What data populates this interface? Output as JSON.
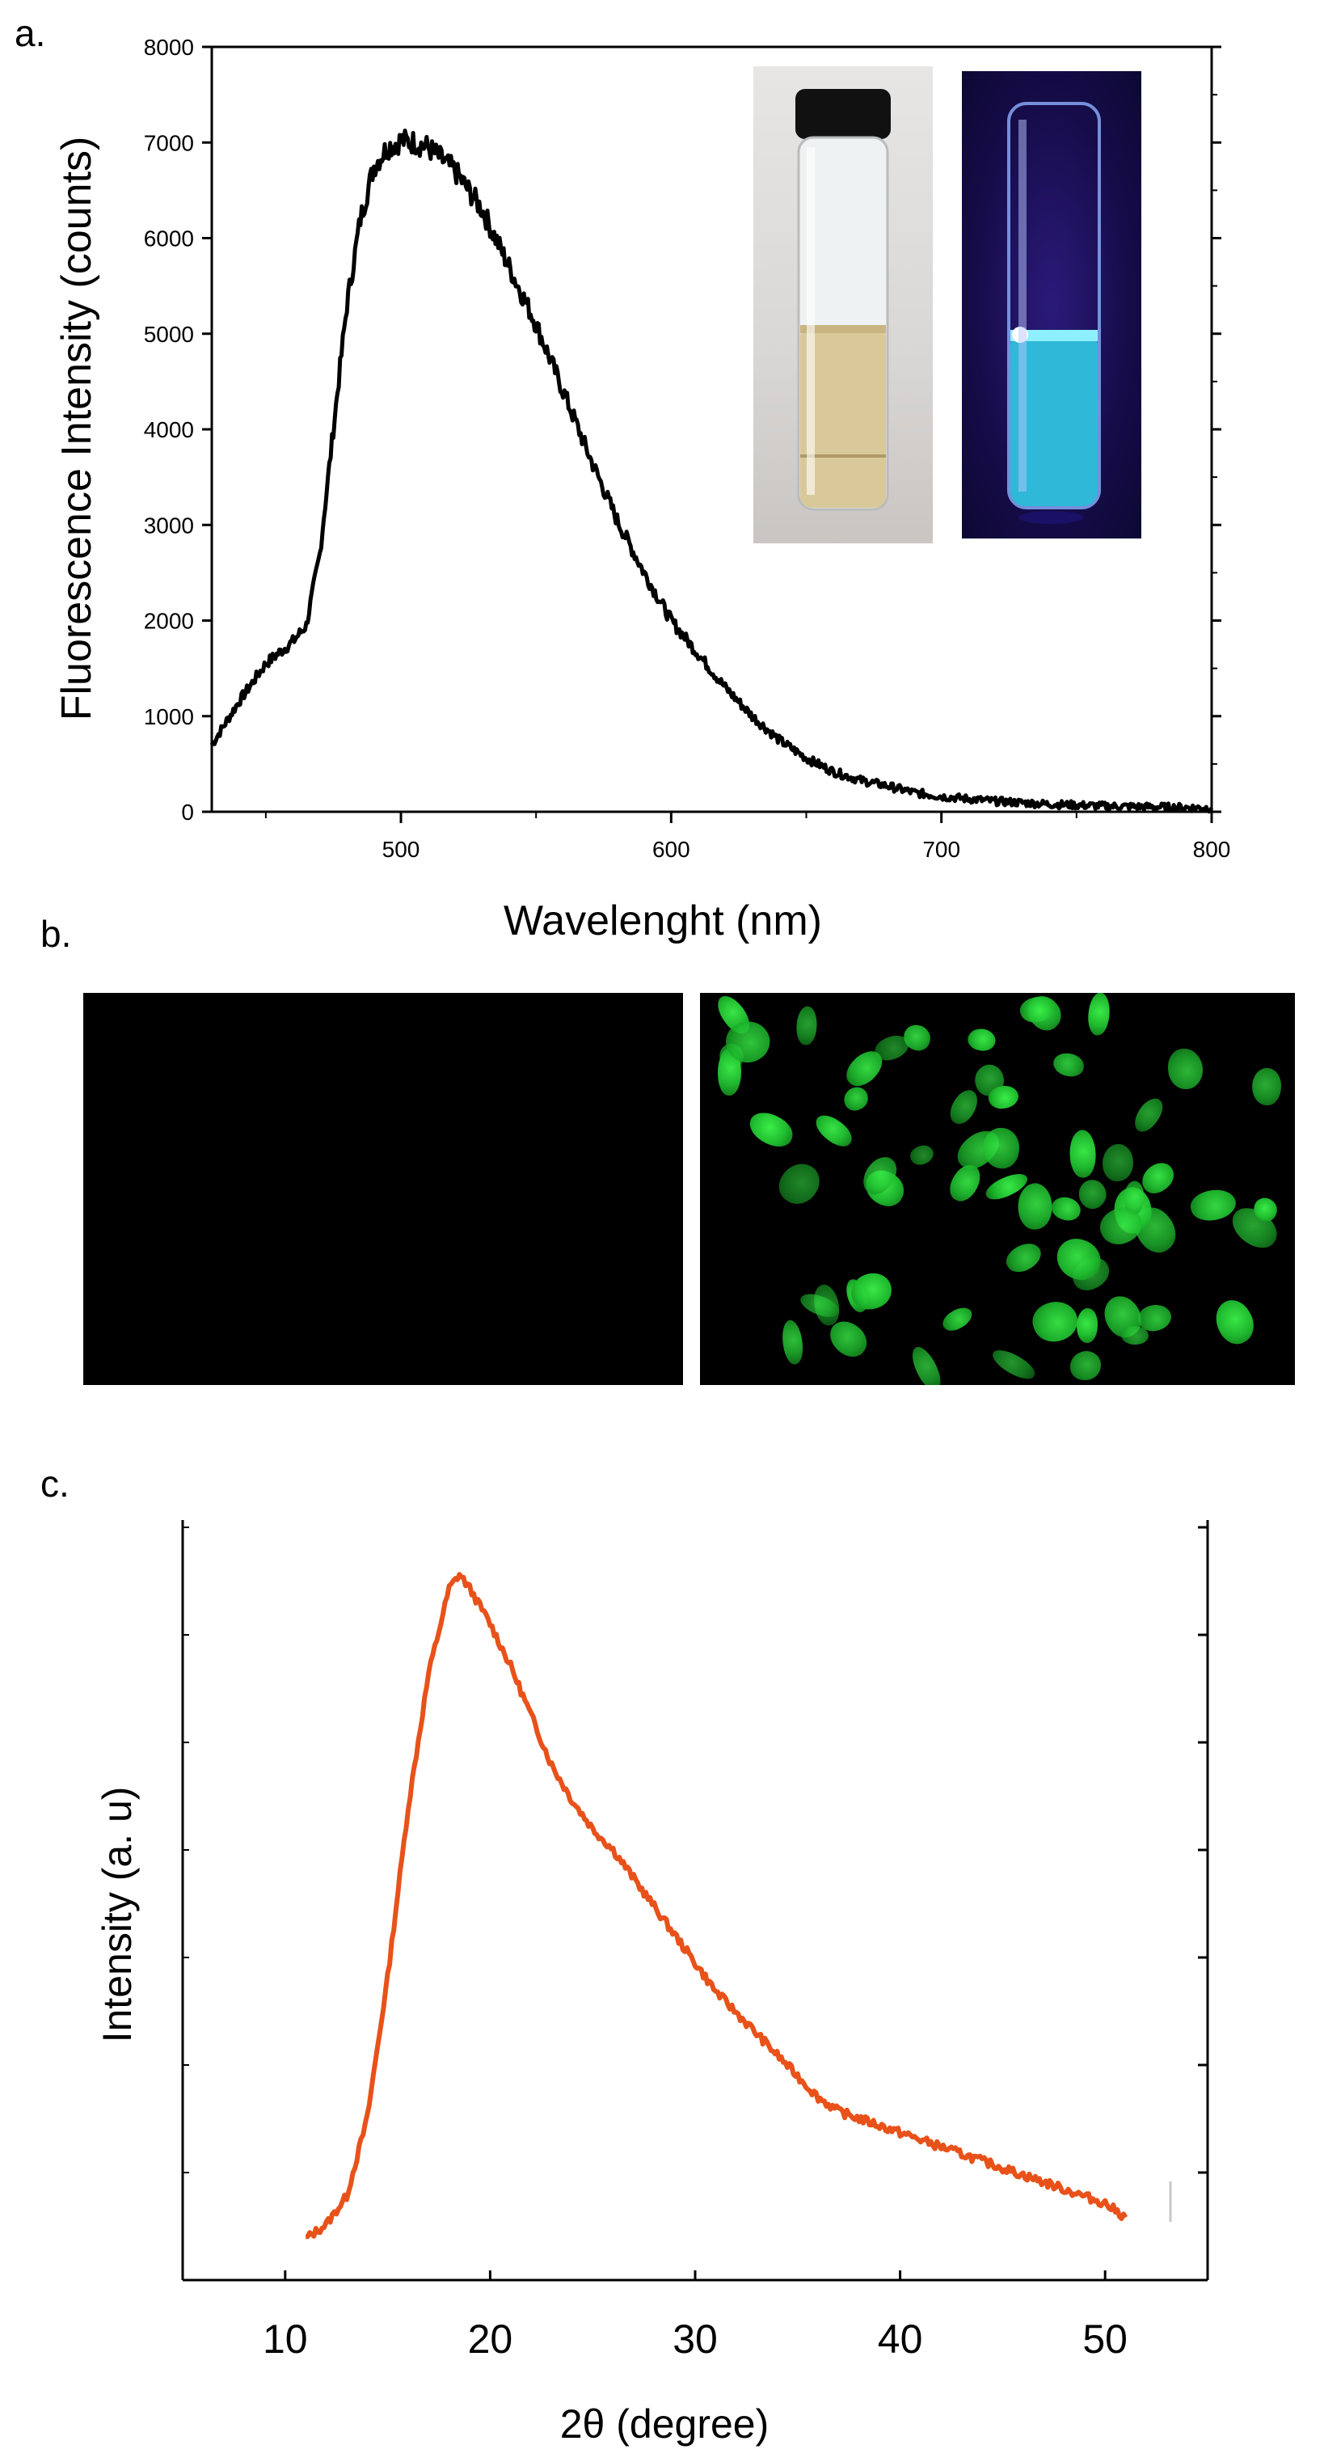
{
  "panels": {
    "a_label": "a.",
    "b_label": "b.",
    "c_label": "c."
  },
  "chart_data": [
    {
      "type": "line",
      "panel": "a",
      "xlabel": "Wavelenght (nm)",
      "ylabel": "Fluorescence Intensity (counts)",
      "xlim": [
        430,
        800
      ],
      "ylim": [
        0,
        8000
      ],
      "x_ticks": [
        500,
        600,
        700,
        800
      ],
      "y_ticks": [
        0,
        1000,
        2000,
        3000,
        4000,
        5000,
        6000,
        7000,
        8000
      ],
      "series": [
        {
          "color": "#000000",
          "x": [
            430,
            440,
            450,
            460,
            465,
            470,
            475,
            480,
            485,
            490,
            495,
            500,
            505,
            510,
            520,
            530,
            540,
            550,
            560,
            570,
            580,
            590,
            600,
            610,
            620,
            630,
            640,
            650,
            660,
            670,
            680,
            690,
            700,
            720,
            740,
            760,
            780,
            800
          ],
          "y": [
            700,
            1150,
            1550,
            1780,
            1950,
            2700,
            4000,
            5300,
            6200,
            6750,
            6950,
            7020,
            7000,
            6950,
            6700,
            6300,
            5700,
            5100,
            4400,
            3700,
            3050,
            2500,
            2000,
            1650,
            1300,
            1000,
            750,
            560,
            420,
            330,
            270,
            200,
            160,
            110,
            80,
            60,
            50,
            40
          ]
        }
      ]
    },
    {
      "type": "line",
      "panel": "c",
      "xlabel": "2θ (degree)",
      "ylabel": "Intensity (a. u)",
      "xlim": [
        5,
        55
      ],
      "x_ticks": [
        10,
        20,
        30,
        40,
        50
      ],
      "y_tick_labels": "none",
      "series": [
        {
          "color": "#e8521a",
          "x": [
            11,
            12,
            13,
            14,
            15,
            16,
            17,
            18,
            18.5,
            19,
            20,
            21,
            22,
            23,
            24,
            25,
            26,
            27,
            28,
            29,
            30,
            31,
            32,
            33,
            34,
            35,
            36,
            37,
            38,
            39,
            40,
            41,
            42,
            43,
            44,
            45,
            46,
            47,
            48,
            49,
            50,
            51
          ],
          "y": [
            0.03,
            0.05,
            0.09,
            0.2,
            0.4,
            0.64,
            0.83,
            0.95,
            0.97,
            0.95,
            0.9,
            0.84,
            0.77,
            0.7,
            0.65,
            0.61,
            0.58,
            0.54,
            0.5,
            0.46,
            0.42,
            0.38,
            0.35,
            0.32,
            0.29,
            0.26,
            0.23,
            0.21,
            0.2,
            0.19,
            0.18,
            0.17,
            0.16,
            0.15,
            0.14,
            0.13,
            0.12,
            0.11,
            0.1,
            0.09,
            0.08,
            0.06
          ]
        }
      ]
    }
  ]
}
